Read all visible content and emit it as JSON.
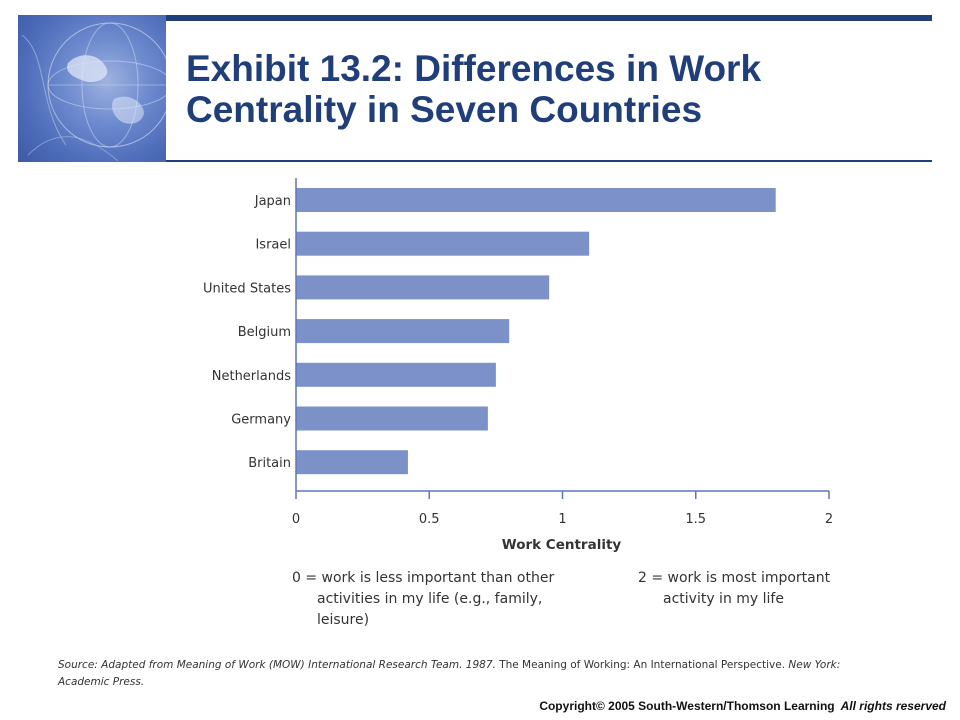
{
  "header": {
    "title_line1": "Exhibit 13.2: Differences in Work",
    "title_line2": "Centrality in Seven Countries"
  },
  "colors": {
    "title": "#1f3e7a",
    "rule": "#1f3e7a",
    "bar": "#7b91c7",
    "axis": "#5f76b8"
  },
  "chart_data": {
    "type": "bar",
    "orientation": "horizontal",
    "categories": [
      "Japan",
      "Israel",
      "United States",
      "Belgium",
      "Netherlands",
      "Germany",
      "Britain"
    ],
    "values": [
      1.8,
      1.1,
      0.95,
      0.8,
      0.75,
      0.72,
      0.42
    ],
    "xlabel": "Work Centrality",
    "ylabel": "",
    "xlim": [
      0,
      2
    ],
    "xticks": [
      0,
      0.5,
      1,
      1.5,
      2
    ],
    "xtick_labels": [
      "0",
      "0.5",
      "1",
      "1.5",
      "2"
    ],
    "grid": false
  },
  "notes": {
    "left_line1": "0 = work is less important than other",
    "left_line2": "activities in my life (e.g., family,",
    "left_line3": "leisure)",
    "right_line1": "2 = work is most important",
    "right_line2": "activity in my life"
  },
  "source": {
    "part1": "Source: Adapted from Meaning of Work (MOW) International Research Team. 1987.",
    "part2": "The Meaning of Working: An International Perspective.",
    "part3": "New York: Academic Press."
  },
  "footer": {
    "copyright": "Copyright© 2005 South-Western/Thomson Learning",
    "rights": "All rights reserved"
  }
}
